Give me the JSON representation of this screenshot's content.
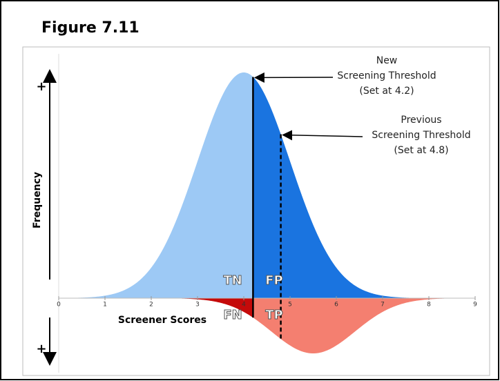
{
  "chart_data": {
    "type": "distribution",
    "title": "Figure 7.11",
    "x_label": "Screener Scores",
    "y_label": "Frequency",
    "plus_signs": [
      "+",
      "+"
    ],
    "xlim": [
      0,
      9
    ],
    "xticks": [
      0,
      1,
      2,
      3,
      4,
      5,
      6,
      7,
      8,
      9
    ],
    "distributions": [
      {
        "mean": 4,
        "sd": 1,
        "colors": [
          "#9dc9f5",
          "#1a74e0"
        ],
        "labels": [
          "TN",
          "FP"
        ]
      },
      {
        "mean": 5.5,
        "sd": 0.9,
        "colors": [
          "#c50a0a",
          "#f47f70"
        ],
        "labels": [
          "FN",
          "TP"
        ]
      }
    ],
    "thresholds": [
      {
        "value": 4.2,
        "style": "solid",
        "annotation": [
          "New",
          "Screening Threshold",
          "(Set at 4.2)"
        ]
      },
      {
        "value": 4.8,
        "style": "dashed",
        "annotation": [
          "Previous",
          "Screening Threshold",
          "(Set at 4.8)"
        ]
      }
    ]
  }
}
